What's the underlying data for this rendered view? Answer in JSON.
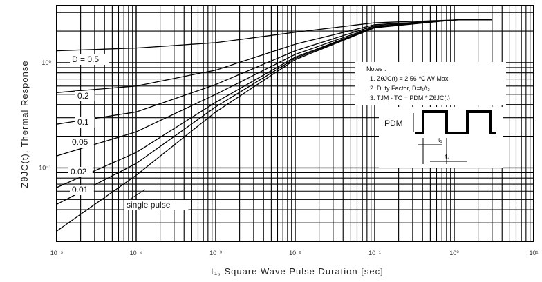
{
  "chart_data": {
    "type": "line",
    "xlabel": "t₁, Square Wave Pulse Duration [sec]",
    "ylabel": "ZθJC(t), Thermal Response",
    "x_scale": "log",
    "y_scale": "log",
    "xlim": [
      1e-05,
      10
    ],
    "ylim": [
      0.02,
      3.5
    ],
    "grid": true,
    "x_ticks": [
      "10⁻⁵",
      "10⁻⁴",
      "10⁻³",
      "10⁻²",
      "10⁻¹",
      "10⁰",
      "10¹"
    ],
    "y_ticks": [
      "10⁻¹",
      "10⁰"
    ],
    "y_tick_values": [
      0.1,
      1
    ],
    "x_tick_values": [
      1e-05,
      0.0001,
      0.001,
      0.01,
      0.1,
      1,
      10
    ],
    "series": [
      {
        "name": "D = 0.5",
        "x": [
          1e-05,
          0.0001,
          0.001,
          0.01,
          0.1,
          1,
          3
        ],
        "y": [
          1.3,
          1.38,
          1.55,
          1.95,
          2.4,
          2.55,
          2.56
        ]
      },
      {
        "name": "0.2",
        "x": [
          1e-05,
          0.0001,
          0.001,
          0.01,
          0.1,
          1,
          3
        ],
        "y": [
          0.52,
          0.6,
          0.85,
          1.5,
          2.3,
          2.55,
          2.56
        ]
      },
      {
        "name": "0.1",
        "x": [
          1e-05,
          0.0001,
          0.001,
          0.01,
          0.1,
          1,
          3
        ],
        "y": [
          0.26,
          0.34,
          0.62,
          1.3,
          2.25,
          2.55,
          2.56
        ]
      },
      {
        "name": "0.05",
        "x": [
          1e-05,
          0.0001,
          0.001,
          0.01,
          0.1,
          1,
          3
        ],
        "y": [
          0.13,
          0.22,
          0.5,
          1.2,
          2.2,
          2.55,
          2.56
        ]
      },
      {
        "name": "0.02",
        "x": [
          1e-05,
          0.0001,
          0.001,
          0.01,
          0.1,
          1,
          3
        ],
        "y": [
          0.065,
          0.14,
          0.42,
          1.13,
          2.18,
          2.55,
          2.56
        ]
      },
      {
        "name": "0.01",
        "x": [
          1e-05,
          0.0001,
          0.001,
          0.01,
          0.1,
          1,
          3
        ],
        "y": [
          0.045,
          0.11,
          0.38,
          1.1,
          2.17,
          2.55,
          2.56
        ]
      },
      {
        "name": "single pulse",
        "x": [
          1e-05,
          0.0001,
          0.001,
          0.01,
          0.1,
          1,
          3
        ],
        "y": [
          0.025,
          0.085,
          0.34,
          1.07,
          2.15,
          2.55,
          2.56
        ]
      }
    ],
    "notes": {
      "heading": "Notes :",
      "line1": "1. ZθJC(t) = 2.56 ℃ /W Max.",
      "line2": "2. Duty Factor, D=t₁/t₂",
      "line3": "3. TJM - TC = PDM * ZθJC(t)",
      "pdm_label": "PDM",
      "t1_label": "t₁",
      "t2_label": "t₂"
    }
  }
}
